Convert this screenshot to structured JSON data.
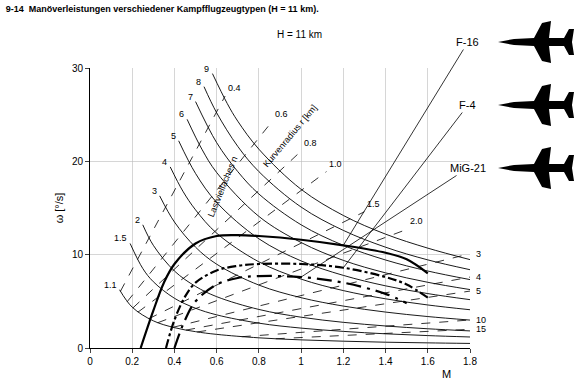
{
  "chart_data": {
    "type": "line",
    "title": "9-14  Manöverleistungen verschiedener Kampfflugzeugtypen (H = 11 km).",
    "subtitle": "H = 11 km",
    "x_label": "M",
    "y_label": "ω [°/s]",
    "xlim": [
      0,
      1.8
    ],
    "ylim": [
      0,
      30
    ],
    "xticks": [
      0,
      0.2,
      0.4,
      0.6,
      0.8,
      1,
      1.2,
      1.4,
      1.6,
      1.8
    ],
    "yticks": [
      0,
      10,
      20,
      30
    ],
    "grid": true,
    "load_factor_lines": {
      "label": "Lastvielfaches n",
      "series": [
        {
          "name": "1.1",
          "color": "#000000",
          "line_style": "solid",
          "x": [
            0.14,
            0.2,
            0.3,
            0.4,
            0.5,
            0.6,
            0.8,
            1.0,
            1.2,
            1.4,
            1.6,
            1.8
          ],
          "values": [
            6.24,
            4.37,
            2.91,
            2.18,
            1.75,
            1.46,
            1.09,
            0.87,
            0.73,
            0.62,
            0.55,
            0.49
          ]
        },
        {
          "name": "1.5",
          "color": "#000000",
          "line_style": "solid",
          "x": [
            0.19,
            0.25,
            0.3,
            0.4,
            0.5,
            0.6,
            0.8,
            1.0,
            1.2,
            1.4,
            1.6,
            1.8
          ],
          "values": [
            11.2,
            8.52,
            7.1,
            5.33,
            4.26,
            3.55,
            2.66,
            2.13,
            1.78,
            1.52,
            1.33,
            1.18
          ]
        },
        {
          "name": "2",
          "color": "#000000",
          "line_style": "solid",
          "x": [
            0.25,
            0.3,
            0.4,
            0.5,
            0.6,
            0.8,
            1.0,
            1.2,
            1.4,
            1.6,
            1.8
          ],
          "values": [
            13.2,
            11.0,
            8.25,
            6.6,
            5.5,
            4.13,
            3.3,
            2.75,
            2.36,
            2.06,
            1.83
          ]
        },
        {
          "name": "3",
          "color": "#000000",
          "line_style": "solid",
          "x": [
            0.33,
            0.4,
            0.5,
            0.6,
            0.8,
            1.0,
            1.2,
            1.4,
            1.6,
            1.8
          ],
          "values": [
            16.3,
            13.5,
            10.8,
            8.98,
            6.74,
            5.39,
            4.49,
            3.85,
            3.37,
            2.99
          ]
        },
        {
          "name": "4",
          "color": "#000000",
          "line_style": "solid",
          "x": [
            0.38,
            0.44,
            0.5,
            0.6,
            0.8,
            1.0,
            1.2,
            1.4,
            1.6,
            1.8
          ],
          "values": [
            19.4,
            16.8,
            14.8,
            12.3,
            9.23,
            7.38,
            6.15,
            5.27,
            4.61,
            4.1
          ]
        },
        {
          "name": "5",
          "color": "#000000",
          "line_style": "solid",
          "x": [
            0.42,
            0.5,
            0.6,
            0.8,
            1.0,
            1.2,
            1.4,
            1.6,
            1.8
          ],
          "values": [
            22.2,
            18.7,
            15.6,
            11.7,
            9.33,
            7.78,
            6.66,
            5.83,
            5.18
          ]
        },
        {
          "name": "6",
          "color": "#000000",
          "line_style": "solid",
          "x": [
            0.46,
            0.53,
            0.6,
            0.8,
            1.0,
            1.2,
            1.4,
            1.6,
            1.8
          ],
          "values": [
            24.5,
            21.3,
            18.8,
            14.1,
            11.3,
            9.39,
            8.05,
            7.04,
            6.26
          ]
        },
        {
          "name": "7",
          "color": "#000000",
          "line_style": "solid",
          "x": [
            0.5,
            0.6,
            0.7,
            0.8,
            1.0,
            1.2,
            1.4,
            1.6,
            1.8
          ],
          "values": [
            26.4,
            22.0,
            18.9,
            16.5,
            13.2,
            11.0,
            9.43,
            8.25,
            7.33
          ]
        },
        {
          "name": "8",
          "color": "#000000",
          "line_style": "solid",
          "x": [
            0.54,
            0.6,
            0.7,
            0.8,
            1.0,
            1.2,
            1.4,
            1.6,
            1.8
          ],
          "values": [
            28.0,
            25.2,
            21.6,
            18.9,
            15.1,
            12.6,
            10.8,
            9.44,
            8.39
          ]
        },
        {
          "name": "9",
          "color": "#000000",
          "line_style": "solid",
          "x": [
            0.58,
            0.65,
            0.7,
            0.8,
            1.0,
            1.2,
            1.4,
            1.6,
            1.8
          ],
          "values": [
            29.4,
            26.2,
            24.3,
            21.3,
            17.0,
            14.2,
            12.2,
            10.7,
            9.47
          ]
        }
      ]
    },
    "radius_lines": {
      "label": "Kurvenradius r [km]",
      "series": [
        {
          "name": "0.4",
          "color": "#000000",
          "line_style": "dash",
          "x": [
            0.144,
            0.64
          ],
          "values": [
            6.07,
            27.0
          ]
        },
        {
          "name": "0.6",
          "color": "#000000",
          "line_style": "dash",
          "x": [
            0.176,
            0.86
          ],
          "values": [
            4.96,
            24.2
          ]
        },
        {
          "name": "0.8",
          "color": "#000000",
          "line_style": "dash",
          "x": [
            0.203,
            1.0
          ],
          "values": [
            4.29,
            21.1
          ]
        },
        {
          "name": "1.0",
          "color": "#000000",
          "line_style": "dash",
          "x": [
            0.227,
            1.12
          ],
          "values": [
            3.84,
            18.9
          ]
        },
        {
          "name": "1.5",
          "color": "#000000",
          "line_style": "dash",
          "x": [
            0.278,
            1.3
          ],
          "values": [
            3.13,
            14.6
          ]
        },
        {
          "name": "2.0",
          "color": "#000000",
          "line_style": "dash",
          "x": [
            0.321,
            1.5
          ],
          "values": [
            2.71,
            12.7
          ]
        },
        {
          "name": "3",
          "color": "#000000",
          "line_style": "dash",
          "x": [
            0.394,
            1.8
          ],
          "values": [
            2.22,
            10.1
          ]
        },
        {
          "name": "4",
          "color": "#000000",
          "line_style": "dash",
          "x": [
            0.455,
            1.8
          ],
          "values": [
            1.92,
            7.6
          ]
        },
        {
          "name": "5",
          "color": "#000000",
          "line_style": "dash",
          "x": [
            0.508,
            1.8
          ],
          "values": [
            1.72,
            6.1
          ]
        },
        {
          "name": "10",
          "color": "#000000",
          "line_style": "dash",
          "x": [
            0.719,
            1.8
          ],
          "values": [
            1.21,
            3.0
          ]
        },
        {
          "name": "15",
          "color": "#000000",
          "line_style": "dash",
          "x": [
            0.88,
            1.8
          ],
          "values": [
            0.99,
            2.0
          ]
        }
      ]
    },
    "series": [
      {
        "name": "F-16",
        "color": "#000000",
        "line_style": "solid",
        "x": [
          0.24,
          0.3,
          0.35,
          0.4,
          0.5,
          0.6,
          0.7,
          0.8,
          1.0,
          1.2,
          1.4,
          1.5,
          1.6
        ],
        "values": [
          0,
          4,
          7,
          9,
          11.2,
          12,
          12.1,
          12,
          11.6,
          11,
          10.2,
          9.5,
          8
        ]
      },
      {
        "name": "F-4",
        "color": "#000000",
        "line_style": "dashdot",
        "x": [
          0.36,
          0.4,
          0.45,
          0.5,
          0.6,
          0.7,
          0.8,
          1.0,
          1.2,
          1.4,
          1.5,
          1.6
        ],
        "values": [
          0,
          3,
          5.5,
          7,
          8.3,
          8.8,
          9,
          9,
          8.6,
          7.6,
          6.8,
          5.4
        ]
      },
      {
        "name": "MiG-21",
        "color": "#000000",
        "line_style": "longdashdot",
        "x": [
          0.4,
          0.45,
          0.5,
          0.6,
          0.7,
          0.8,
          1.0,
          1.2,
          1.4,
          1.5
        ],
        "values": [
          0,
          3,
          5,
          6.8,
          7.5,
          7.7,
          7.6,
          7,
          5.8,
          4.8
        ]
      }
    ]
  }
}
